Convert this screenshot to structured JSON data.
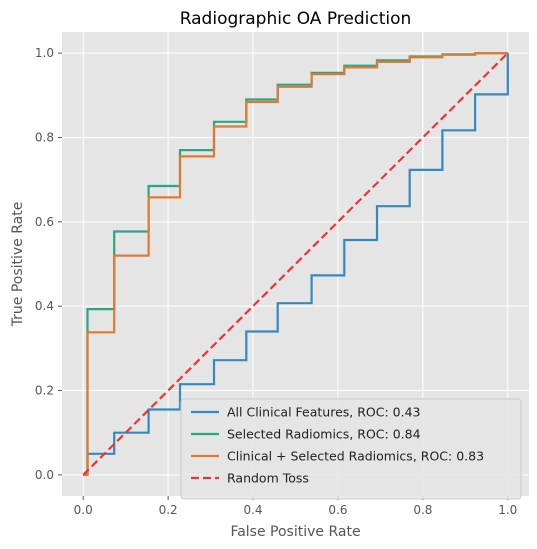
{
  "chart_data": {
    "type": "line",
    "title": "Radiographic OA Prediction",
    "xlabel": "False Positive Rate",
    "ylabel": "True Positive Rate",
    "xlim": [
      -0.05,
      1.05
    ],
    "ylim": [
      -0.05,
      1.05
    ],
    "xticks": [
      0.0,
      0.2,
      0.4,
      0.6,
      0.8,
      1.0
    ],
    "yticks": [
      0.0,
      0.2,
      0.4,
      0.6,
      0.8,
      1.0
    ],
    "xtick_labels": [
      "0.0",
      "0.2",
      "0.4",
      "0.6",
      "0.8",
      "1.0"
    ],
    "ytick_labels": [
      "0.0",
      "0.2",
      "0.4",
      "0.6",
      "0.8",
      "1.0"
    ],
    "grid": true,
    "legend_position": "lower-right",
    "series": [
      {
        "name": "All Clinical Features, ROC:  0.43",
        "color": "#348abd",
        "dash": false,
        "x": [
          0.0,
          0.01,
          0.01,
          0.073,
          0.073,
          0.154,
          0.154,
          0.228,
          0.228,
          0.308,
          0.308,
          0.384,
          0.384,
          0.458,
          0.458,
          0.538,
          0.538,
          0.615,
          0.615,
          0.692,
          0.692,
          0.769,
          0.769,
          0.846,
          0.846,
          0.923,
          0.923,
          1.0,
          1.0
        ],
        "y": [
          0.0,
          0.0,
          0.05,
          0.05,
          0.1,
          0.1,
          0.155,
          0.155,
          0.215,
          0.215,
          0.272,
          0.272,
          0.34,
          0.34,
          0.407,
          0.407,
          0.473,
          0.473,
          0.557,
          0.557,
          0.637,
          0.637,
          0.723,
          0.723,
          0.817,
          0.817,
          0.902,
          0.902,
          1.0
        ]
      },
      {
        "name": "Selected Radiomics, ROC:  0.84",
        "color": "#2aa586",
        "dash": false,
        "x": [
          0.0,
          0.01,
          0.01,
          0.073,
          0.073,
          0.154,
          0.154,
          0.228,
          0.228,
          0.308,
          0.308,
          0.384,
          0.384,
          0.458,
          0.458,
          0.538,
          0.538,
          0.615,
          0.615,
          0.692,
          0.692,
          0.769,
          0.769,
          0.846,
          0.846,
          0.923,
          0.923,
          1.0
        ],
        "y": [
          0.0,
          0.0,
          0.393,
          0.393,
          0.577,
          0.577,
          0.685,
          0.685,
          0.77,
          0.77,
          0.837,
          0.837,
          0.89,
          0.89,
          0.925,
          0.925,
          0.953,
          0.953,
          0.97,
          0.97,
          0.983,
          0.983,
          0.992,
          0.992,
          0.997,
          0.997,
          1.0,
          1.0
        ]
      },
      {
        "name": "Clinical + Selected Radiomics, ROC:  0.83",
        "color": "#e07a2f",
        "dash": false,
        "x": [
          0.0,
          0.01,
          0.01,
          0.073,
          0.073,
          0.154,
          0.154,
          0.228,
          0.228,
          0.308,
          0.308,
          0.384,
          0.384,
          0.458,
          0.458,
          0.538,
          0.538,
          0.615,
          0.615,
          0.692,
          0.692,
          0.769,
          0.769,
          0.846,
          0.846,
          0.923,
          0.923,
          1.0
        ],
        "y": [
          0.0,
          0.0,
          0.338,
          0.338,
          0.52,
          0.52,
          0.658,
          0.658,
          0.755,
          0.755,
          0.826,
          0.826,
          0.884,
          0.884,
          0.92,
          0.92,
          0.95,
          0.95,
          0.966,
          0.966,
          0.979,
          0.979,
          0.99,
          0.99,
          0.996,
          0.996,
          1.0,
          1.0
        ]
      },
      {
        "name": "Random Toss",
        "color": "#ee3333",
        "dash": true,
        "x": [
          0.0,
          1.0
        ],
        "y": [
          0.0,
          1.0
        ]
      }
    ]
  }
}
